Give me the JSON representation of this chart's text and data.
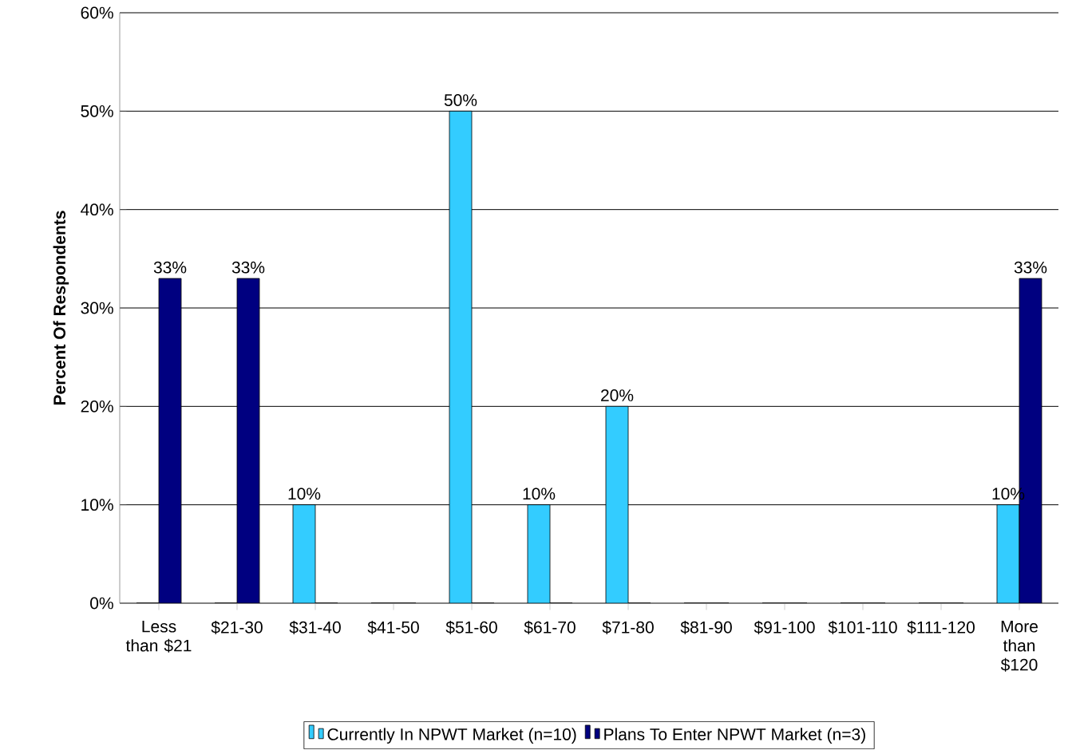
{
  "chart_data": {
    "type": "bar",
    "ylabel": "Percent Of Respondents",
    "categories": [
      "Less than $21",
      "$21-30",
      "$31-40",
      "$41-50",
      "$51-60",
      "$61-70",
      "$71-80",
      "$81-90",
      "$91-100",
      "$101-110",
      "$111-120",
      "More than $120"
    ],
    "series": [
      {
        "name": "Currently In NPWT Market (n=10)",
        "color": "#33ccff",
        "values": [
          0,
          0,
          10,
          0,
          50,
          10,
          20,
          0,
          0,
          0,
          0,
          10
        ],
        "value_labels": [
          null,
          null,
          "10%",
          null,
          "50%",
          "10%",
          "20%",
          null,
          null,
          null,
          null,
          "10%"
        ]
      },
      {
        "name": "Plans To Enter NPWT Market (n=3)",
        "color": "#000080",
        "values": [
          33,
          33,
          0,
          0,
          0,
          0,
          0,
          0,
          0,
          0,
          0,
          33
        ],
        "value_labels": [
          "33%",
          "33%",
          null,
          null,
          null,
          null,
          null,
          null,
          null,
          null,
          null,
          "33%"
        ]
      }
    ],
    "ylim": [
      0,
      60
    ],
    "yticks": [
      {
        "value": 0,
        "label": "0%"
      },
      {
        "value": 10,
        "label": "10%"
      },
      {
        "value": 20,
        "label": "20%"
      },
      {
        "value": 30,
        "label": "30%"
      },
      {
        "value": 40,
        "label": "40%"
      },
      {
        "value": 50,
        "label": "50%"
      },
      {
        "value": 60,
        "label": "60%"
      }
    ],
    "grid": "y",
    "legend": "bottom"
  }
}
